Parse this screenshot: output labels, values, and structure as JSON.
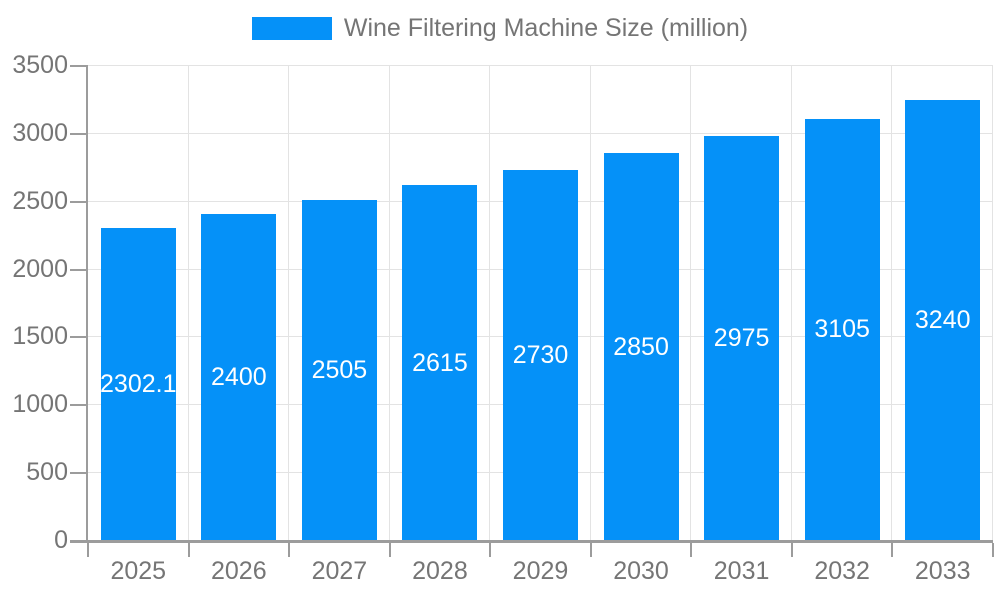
{
  "chart_data": {
    "type": "bar",
    "title": "Wine Filtering Machine Size (million)",
    "categories": [
      "2025",
      "2026",
      "2027",
      "2028",
      "2029",
      "2030",
      "2031",
      "2032",
      "2033"
    ],
    "values": [
      2302.1,
      2400,
      2505,
      2615,
      2730,
      2850,
      2975,
      3105,
      3240
    ],
    "value_labels": [
      "2302.1",
      "2400",
      "2505",
      "2615",
      "2730",
      "2850",
      "2975",
      "3105",
      "3240"
    ],
    "xlabel": "",
    "ylabel": "",
    "ylim": [
      0,
      3500
    ],
    "yticks": [
      0,
      500,
      1000,
      1500,
      2000,
      2500,
      3000,
      3500
    ],
    "grid": true,
    "legend_position": "top",
    "colors": {
      "bar": "#0591f8",
      "bar_label": "#ffffff",
      "grid": "#e3e3e3",
      "axis": "#9c9c9c",
      "text": "#757575"
    }
  }
}
